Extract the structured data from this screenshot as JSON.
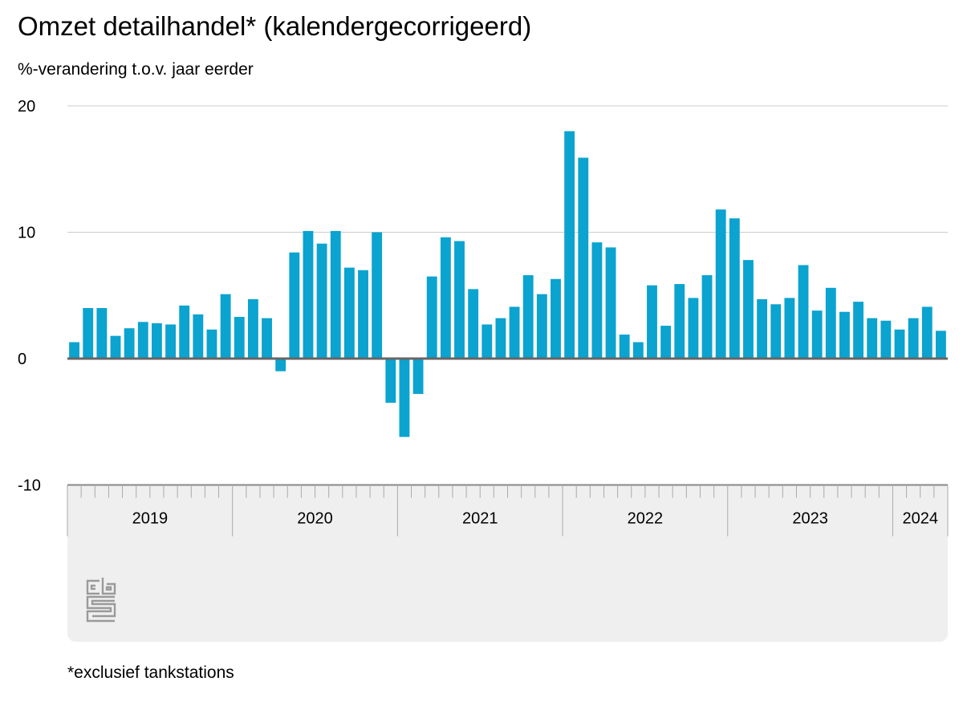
{
  "header": {
    "title": "Omzet detailhandel* (kalendergecorrigeerd)",
    "subtitle": "%-verandering t.o.v. jaar eerder"
  },
  "footnote": "*exclusief tankstations",
  "logo": {
    "icon": "cbs-logo-icon"
  },
  "colors": {
    "bar": "#0ba3cf",
    "zero_line": "#666666",
    "grid": "#cccccc",
    "axis_panel": "#efefef"
  },
  "chart_data": {
    "type": "bar",
    "title": "Omzet detailhandel* (kalendergecorrigeerd)",
    "ylabel": "%-verandering t.o.v. jaar eerder",
    "ylim": [
      -10,
      20
    ],
    "yticks": [
      20,
      10,
      0,
      -10
    ],
    "grid": true,
    "frequency": "monthly",
    "start": "2019-01",
    "year_labels": [
      "2019",
      "2020",
      "2021",
      "2022",
      "2023",
      "2024"
    ],
    "values": [
      1.3,
      4.0,
      4.0,
      1.8,
      2.4,
      2.9,
      2.8,
      2.7,
      4.2,
      3.5,
      2.3,
      5.1,
      3.3,
      4.7,
      3.2,
      -1.0,
      8.4,
      10.1,
      9.1,
      10.1,
      7.2,
      7.0,
      10.0,
      -3.5,
      -6.2,
      -2.8,
      6.5,
      9.6,
      9.3,
      5.5,
      2.7,
      3.2,
      4.1,
      6.6,
      5.1,
      6.3,
      18.0,
      15.9,
      9.2,
      8.8,
      1.9,
      1.3,
      5.8,
      2.6,
      5.9,
      4.8,
      6.6,
      11.8,
      11.1,
      7.8,
      4.7,
      4.3,
      4.8,
      7.4,
      3.8,
      5.6,
      3.7,
      4.5,
      3.2,
      3.0,
      2.3,
      3.2,
      4.1,
      2.2
    ]
  }
}
